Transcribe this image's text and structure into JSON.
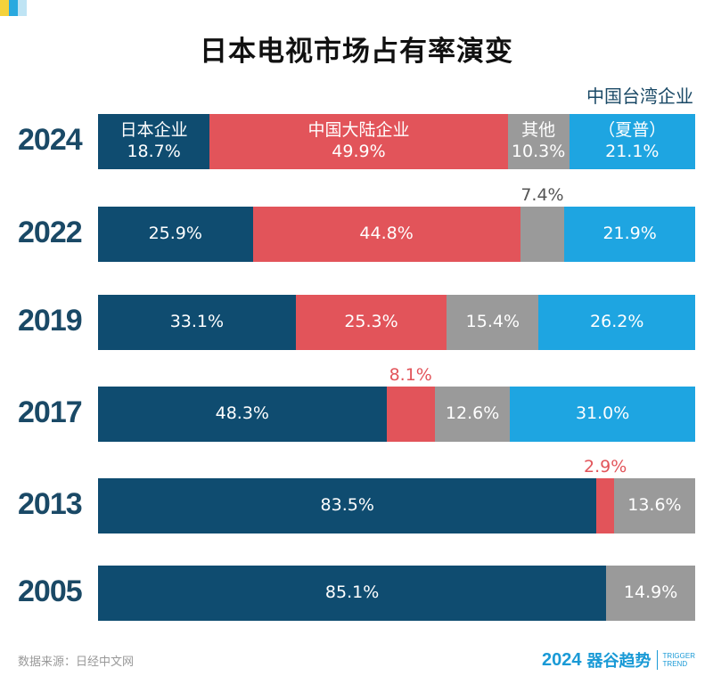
{
  "title": "日本电视市场占有率演变",
  "source": "数据来源：日经中文网",
  "brand": {
    "year": "2024",
    "name": "器谷趋势",
    "en_line1": "TRIGGER",
    "en_line2": "TREND"
  },
  "colors": {
    "japan": "#0f4c70",
    "china": "#e2545a",
    "other": "#9a9a9a",
    "taiwan": "#1ea5e1"
  },
  "chart_data": {
    "type": "bar",
    "orientation": "horizontal",
    "stacked": "100%",
    "title": "日本电视市场占有率演变",
    "categories": [
      "2024",
      "2022",
      "2019",
      "2017",
      "2013",
      "2005"
    ],
    "series": [
      {
        "name": "日本企业",
        "values": [
          18.7,
          25.9,
          33.1,
          48.3,
          83.5,
          85.1
        ]
      },
      {
        "name": "中国大陆企业",
        "values": [
          49.9,
          44.8,
          25.3,
          8.1,
          2.9,
          0
        ]
      },
      {
        "name": "其他",
        "values": [
          10.3,
          7.4,
          15.4,
          12.6,
          13.6,
          14.9
        ]
      },
      {
        "name": "中国台湾企业（夏普）",
        "values": [
          21.1,
          21.9,
          26.2,
          31.0,
          0,
          0
        ]
      }
    ],
    "labels": [
      [
        "18.7%",
        "49.9%",
        "10.3%",
        "21.1%"
      ],
      [
        "25.9%",
        "44.8%",
        "7.4%",
        "21.9%"
      ],
      [
        "33.1%",
        "25.3%",
        "15.4%",
        "26.2%"
      ],
      [
        "48.3%",
        "8.1%",
        "12.6%",
        "31.0%"
      ],
      [
        "83.5%",
        "2.9%",
        "13.6%",
        ""
      ],
      [
        "85.1%",
        "",
        "14.9%",
        ""
      ]
    ],
    "legend_in_first_bar": [
      "日本企业",
      "中国大陆企业",
      "其他",
      "（夏普）"
    ],
    "legend_above": "中国台湾企业",
    "outside_labels": [
      {
        "row": 1,
        "series": 2,
        "text": "7.4%"
      },
      {
        "row": 3,
        "series": 1,
        "text": "8.1%"
      },
      {
        "row": 4,
        "series": 1,
        "text": "2.9%"
      }
    ]
  }
}
